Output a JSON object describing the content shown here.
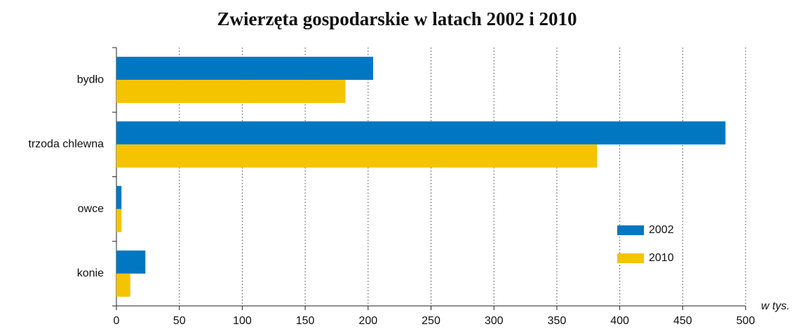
{
  "chart_data": {
    "type": "hbar",
    "title": "Zwierzęta gospodarskie w latach 2002 i 2010",
    "xlabel": "w tys.",
    "categories": [
      "bydło",
      "trzoda chlewna",
      "owce",
      "konie"
    ],
    "series": [
      {
        "name": "2002",
        "color": "#0077c0",
        "values": [
          204,
          484,
          4,
          23
        ]
      },
      {
        "name": "2010",
        "color": "#f5c400",
        "values": [
          182,
          382,
          4,
          11
        ]
      }
    ],
    "xlim": [
      0,
      500
    ],
    "xticks": [
      0,
      50,
      100,
      150,
      200,
      250,
      300,
      350,
      400,
      450,
      500
    ],
    "grid": true,
    "legend": "lower right"
  }
}
